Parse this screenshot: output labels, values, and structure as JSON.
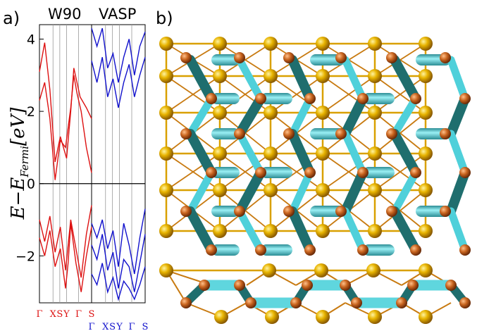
{
  "panel_a_label": "a)",
  "panel_b_label": "b)",
  "col_left_title": "W90",
  "col_right_title": "VASP",
  "y_label": "E−E_Fermi[eV]",
  "y_label_main": "E−E",
  "y_label_sub": "Fermi",
  "y_label_unit": "[eV]",
  "colors": {
    "w90": "#dd1111",
    "vasp": "#1111cc",
    "teal_bond": "#3fbfcc",
    "teal_dark": "#1f6e6e",
    "gold_atom": "#e0a800",
    "copper_atom": "#c8641e"
  },
  "chart_data": {
    "type": "line",
    "xlabel": "",
    "ylabel": "E−E_Fermi[eV]",
    "ylim": [
      -3.3,
      4.4
    ],
    "yticks": [
      4,
      2,
      0,
      -2
    ],
    "kpath": [
      "Γ",
      "X",
      "S",
      "Y",
      "Γ",
      "S"
    ],
    "kpath_positions": [
      0,
      0.26,
      0.39,
      0.52,
      0.75,
      1.0
    ],
    "panels": [
      {
        "name": "W90",
        "series": [
          {
            "values_x": [
              0,
              0.1,
              0.2,
              0.3,
              0.4,
              0.52,
              0.6,
              0.66,
              0.72,
              0.78,
              0.9,
              1.0
            ],
            "values_y": [
              3.1,
              3.9,
              2.6,
              0.6,
              1.3,
              0.7,
              2.0,
              3.2,
              2.8,
              2.4,
              2.1,
              1.8
            ]
          },
          {
            "values_x": [
              0,
              0.1,
              0.2,
              0.3,
              0.4,
              0.5,
              0.6,
              0.66,
              0.72,
              0.8,
              0.9,
              1.0
            ],
            "values_y": [
              2.3,
              2.8,
              1.8,
              0.1,
              1.2,
              1.0,
              2.1,
              3.0,
              2.5,
              2.0,
              1.0,
              0.3
            ]
          },
          {
            "values_x": [
              0,
              0.1,
              0.2,
              0.3,
              0.4,
              0.5,
              0.6,
              0.7,
              0.8,
              0.9,
              1.0
            ],
            "values_y": [
              -1.0,
              -1.6,
              -0.9,
              -1.9,
              -1.2,
              -2.4,
              -1.0,
              -1.8,
              -2.6,
              -1.4,
              -0.6
            ]
          },
          {
            "values_x": [
              0,
              0.1,
              0.2,
              0.3,
              0.4,
              0.5,
              0.55,
              0.6,
              0.7,
              0.8,
              0.9,
              1.0
            ],
            "values_y": [
              -1.5,
              -2.0,
              -1.3,
              -2.3,
              -1.8,
              -2.9,
              -2.2,
              -1.1,
              -2.2,
              -3.0,
              -2.0,
              -1.2
            ]
          }
        ]
      },
      {
        "name": "VASP",
        "series": [
          {
            "values_x": [
              0,
              0.1,
              0.2,
              0.3,
              0.4,
              0.5,
              0.6,
              0.7,
              0.8,
              0.9,
              1.0
            ],
            "values_y": [
              4.3,
              3.8,
              4.3,
              3.2,
              3.6,
              2.8,
              3.5,
              4.0,
              3.0,
              3.8,
              4.2
            ]
          },
          {
            "values_x": [
              0,
              0.1,
              0.2,
              0.3,
              0.4,
              0.5,
              0.6,
              0.7,
              0.8,
              0.9,
              1.0
            ],
            "values_y": [
              3.4,
              2.8,
              3.5,
              2.4,
              2.9,
              2.1,
              2.8,
              3.3,
              2.4,
              3.0,
              3.5
            ]
          },
          {
            "values_x": [
              0,
              0.1,
              0.2,
              0.3,
              0.4,
              0.5,
              0.6,
              0.7,
              0.8,
              0.9,
              1.0
            ],
            "values_y": [
              -1.1,
              -1.5,
              -1.0,
              -1.8,
              -1.3,
              -2.3,
              -1.1,
              -1.7,
              -2.5,
              -1.5,
              -0.7
            ]
          },
          {
            "values_x": [
              0,
              0.1,
              0.2,
              0.3,
              0.4,
              0.5,
              0.6,
              0.7,
              0.8,
              0.9,
              1.0
            ],
            "values_y": [
              -1.7,
              -2.1,
              -1.4,
              -2.4,
              -1.9,
              -2.9,
              -2.1,
              -2.3,
              -3.0,
              -2.2,
              -1.4
            ]
          },
          {
            "values_x": [
              0,
              0.1,
              0.2,
              0.3,
              0.4,
              0.5,
              0.6,
              0.7,
              0.8,
              0.9,
              1.0
            ],
            "values_y": [
              -2.5,
              -2.8,
              -2.2,
              -3.0,
              -2.6,
              -3.2,
              -2.7,
              -2.9,
              -3.2,
              -2.8,
              -2.3
            ]
          }
        ]
      }
    ]
  }
}
